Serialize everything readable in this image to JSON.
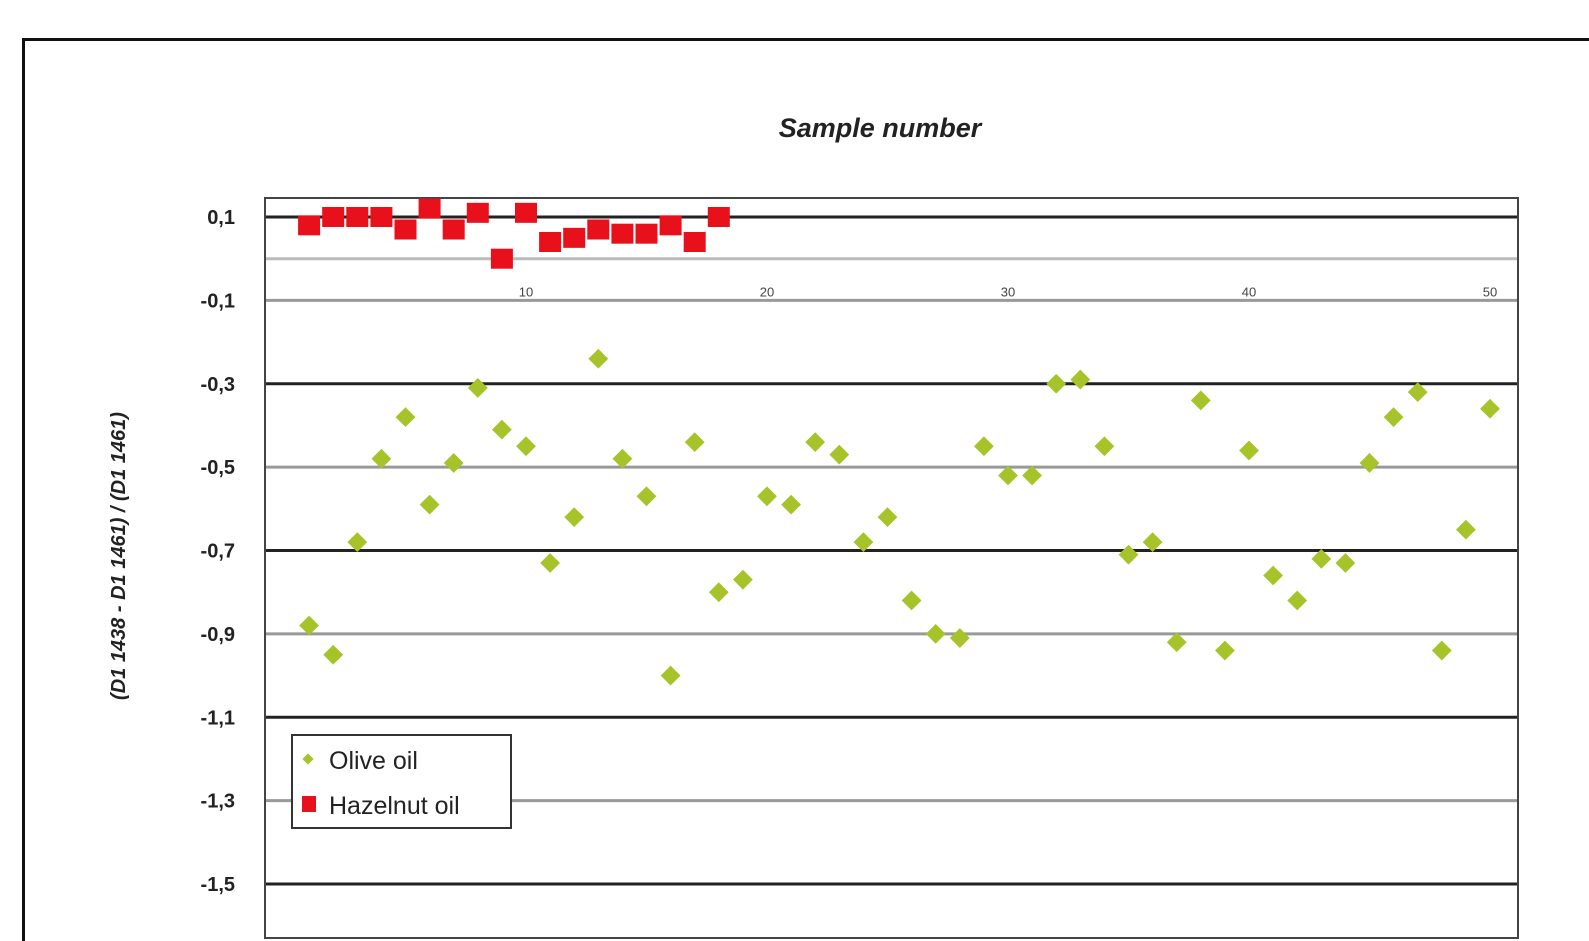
{
  "chart_data": {
    "type": "scatter",
    "title": "Sample number",
    "xlabel": "",
    "ylabel": "(D1 1438 - D1 1461) / (D1 1461)",
    "xlim": [
      0,
      52
    ],
    "ylim": [
      -1.5,
      0.1
    ],
    "x_ticks": [
      "10",
      "20",
      "30",
      "40",
      "50"
    ],
    "y_ticks": [
      "0,1",
      "-0,1",
      "-0,3",
      "-0,5",
      "-0,7",
      "-0,9",
      "-1,1",
      "-1,3",
      "-1,5"
    ],
    "grid": true,
    "legend_position": "bottom-left",
    "series": [
      {
        "name": "Olive oil",
        "marker": "diamond",
        "color": "#a6c42a",
        "x": [
          1,
          2,
          3,
          4,
          5,
          6,
          7,
          8,
          9,
          10,
          11,
          12,
          13,
          14,
          15,
          16,
          17,
          18,
          19,
          20,
          21,
          22,
          23,
          24,
          25,
          26,
          27,
          28,
          29,
          30,
          31,
          32,
          33,
          34,
          35,
          36,
          37,
          38,
          39,
          40,
          41,
          42,
          43,
          44,
          45,
          46,
          47,
          48,
          49,
          50
        ],
        "y": [
          -0.88,
          -0.95,
          -0.68,
          -0.48,
          -0.38,
          -0.59,
          -0.49,
          -0.31,
          -0.41,
          -0.45,
          -0.73,
          -0.62,
          -0.24,
          -0.48,
          -0.57,
          -1.0,
          -0.44,
          -0.8,
          -0.77,
          -0.57,
          -0.59,
          -0.44,
          -0.47,
          -0.68,
          -0.62,
          -0.82,
          -0.9,
          -0.91,
          -0.45,
          -0.52,
          -0.52,
          -0.3,
          -0.29,
          -0.45,
          -0.71,
          -0.68,
          -0.92,
          -0.34,
          -0.94,
          -0.46,
          -0.76,
          -0.82,
          -0.72,
          -0.73,
          -0.49,
          -0.38,
          -0.32,
          -0.94,
          -0.65,
          -0.36
        ]
      },
      {
        "name": "Hazelnut oil",
        "marker": "square",
        "color": "#e8101a",
        "x": [
          1,
          2,
          3,
          4,
          5,
          6,
          7,
          8,
          9,
          10,
          11,
          12,
          13,
          14,
          15,
          16,
          17,
          18
        ],
        "y": [
          0.08,
          0.1,
          0.1,
          0.1,
          0.07,
          0.12,
          0.07,
          0.11,
          0.0,
          0.11,
          0.04,
          0.05,
          0.07,
          0.06,
          0.06,
          0.08,
          0.04,
          0.1
        ]
      }
    ]
  }
}
